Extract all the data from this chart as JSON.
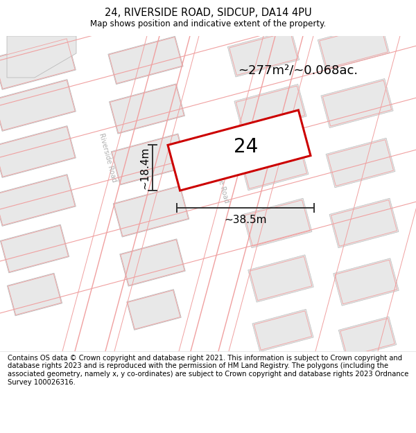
{
  "title": "24, RIVERSIDE ROAD, SIDCUP, DA14 4PU",
  "subtitle": "Map shows position and indicative extent of the property.",
  "footer": "Contains OS data © Crown copyright and database right 2021. This information is subject to Crown copyright and database rights 2023 and is reproduced with the permission of HM Land Registry. The polygons (including the associated geometry, namely x, y co-ordinates) are subject to Crown copyright and database rights 2023 Ordnance Survey 100026316.",
  "area_label": "~277m²/~0.068ac.",
  "width_label": "~38.5m",
  "height_label": "~18.4m",
  "number_label": "24",
  "map_bg": "#ffffff",
  "building_fill": "#e8e8e8",
  "building_edge": "#bbbbbb",
  "plot_line": "#f0a0a0",
  "road_fill": "#ffffff",
  "property_fill": "#ffffff",
  "property_stroke": "#cc0000",
  "road_label_color": "#b0b0b0",
  "annot_color": "#333333",
  "tilt_deg": 15,
  "title_fontsize": 10.5,
  "subtitle_fontsize": 8.5,
  "footer_fontsize": 7.2,
  "label_fontsize": 11,
  "area_fontsize": 13,
  "num_fontsize": 20
}
